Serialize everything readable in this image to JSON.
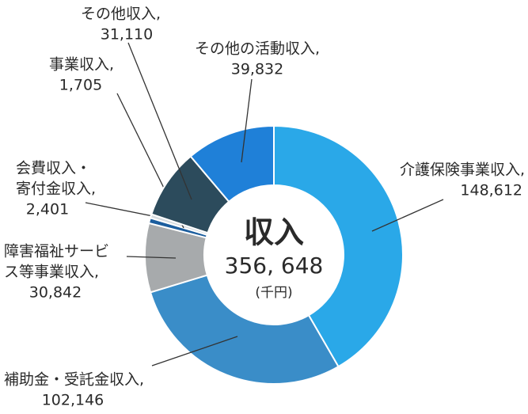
{
  "chart_data": {
    "type": "donut",
    "center_title": "収入",
    "total_label": "356, 648",
    "unit": "(千円)",
    "categories": [
      [
        "介護保険事業収入,"
      ],
      [
        "補助金・受託金収入,"
      ],
      [
        "障害福祉サービ",
        "ス等事業収入,"
      ],
      [
        "会費収入・",
        "寄付金収入,"
      ],
      [
        "事業収入,"
      ],
      [
        "その他収入,"
      ],
      [
        "その他の活動収入,"
      ]
    ],
    "values": [
      148612,
      102146,
      30842,
      2401,
      1705,
      31110,
      39832
    ],
    "value_labels": [
      "148,612",
      "102,146",
      "30,842",
      "2,401",
      "1,705",
      "31,110",
      "39,832"
    ],
    "colors": [
      "#2aa8e8",
      "#3a8dc8",
      "#a7aaac",
      "#1c5e9e",
      "#d6dce0",
      "#2c4b5c",
      "#1f80d8"
    ]
  }
}
